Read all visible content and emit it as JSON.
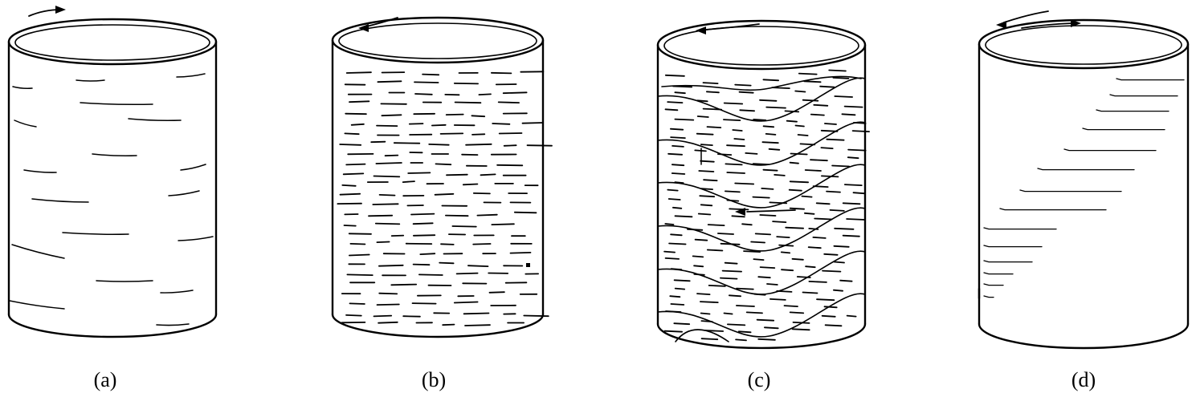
{
  "panels": [
    {
      "id": "a",
      "label": "(a)",
      "pattern": "sparse-horizontal-streaks",
      "rotation_arrows": "single-clockwise"
    },
    {
      "id": "b",
      "label": "(b)",
      "pattern": "dense-short-dashes",
      "rotation_arrows": "single-counterclockwise"
    },
    {
      "id": "c",
      "label": "(c)",
      "pattern": "wavy-bands-with-dashes",
      "rotation_arrows": "single-counterclockwise-plus-internal"
    },
    {
      "id": "d",
      "label": "(d)",
      "pattern": "diagonal-stepped-cracks",
      "rotation_arrows": "opposing-pair"
    }
  ],
  "colors": {
    "ink": "#000000",
    "paper": "#ffffff"
  }
}
